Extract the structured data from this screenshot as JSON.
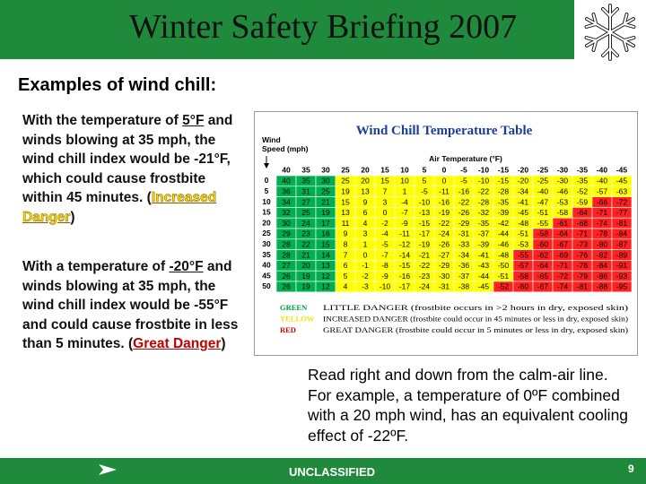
{
  "header": {
    "title": "Winter Safety Briefing 2007"
  },
  "heading": "Examples of wind chill:",
  "paragraphs": [
    [
      "With the temperature of ",
      "5°F",
      " and winds blowing at 35 mph, the wind chill index would be -21°F, which could cause frostbite within 45 minutes. (",
      "Increased Danger",
      ")"
    ],
    [
      "With a temperature of ",
      "-20°F",
      " and winds blowing  at 35 mph, the wind chill index would be -55°F and could cause frostbite in less than 5 minutes.  (",
      "Great Danger",
      ")"
    ]
  ],
  "table": {
    "title": "Wind Chill Temperature Table",
    "wind_label": [
      "Wind",
      "Speed (mph)"
    ],
    "temp_label": "Air Temperature (°F)",
    "palette": {
      "g": "#00b050",
      "y": "#ffff00",
      "r": "#ff2020"
    },
    "temperatures": [
      40,
      35,
      30,
      25,
      20,
      15,
      10,
      5,
      0,
      -5,
      -10,
      -15,
      -20,
      -25,
      -30,
      -35,
      -40,
      -45
    ],
    "rows": [
      {
        "wind": 0,
        "values": [
          40,
          35,
          30,
          25,
          20,
          15,
          10,
          5,
          0,
          -5,
          -10,
          -15,
          -20,
          -25,
          -30,
          -35,
          -40,
          -45
        ],
        "colors": "gggyyyyyyyyyyyyyyy"
      },
      {
        "wind": 5,
        "values": [
          36,
          31,
          25,
          19,
          13,
          7,
          1,
          -5,
          -11,
          -16,
          -22,
          -28,
          -34,
          -40,
          -46,
          -52,
          -57,
          -63
        ],
        "colors": "gggyyyyyyyyyyyyyyy"
      },
      {
        "wind": 10,
        "values": [
          34,
          27,
          21,
          15,
          9,
          3,
          -4,
          -10,
          -16,
          -22,
          -28,
          -35,
          -41,
          -47,
          -53,
          -59,
          -66,
          -72
        ],
        "colors": "gggyyyyyyyyyyyyyrr"
      },
      {
        "wind": 15,
        "values": [
          32,
          25,
          19,
          13,
          6,
          0,
          -7,
          -13,
          -19,
          -26,
          -32,
          -39,
          -45,
          -51,
          -58,
          -64,
          -71,
          -77
        ],
        "colors": "gggyyyyyyyyyyyyrrr"
      },
      {
        "wind": 20,
        "values": [
          30,
          24,
          17,
          11,
          4,
          -2,
          -9,
          -15,
          -22,
          -29,
          -35,
          -42,
          -48,
          -55,
          -61,
          -68,
          -74,
          -81
        ],
        "colors": "gggyyyyyyyyyyyrrrr"
      },
      {
        "wind": 25,
        "values": [
          29,
          23,
          16,
          9,
          3,
          -4,
          -11,
          -17,
          -24,
          -31,
          -37,
          -44,
          -51,
          -58,
          -64,
          -71,
          -78,
          -84
        ],
        "colors": "gggyyyyyyyyyyrrrrr"
      },
      {
        "wind": 30,
        "values": [
          28,
          22,
          15,
          8,
          1,
          -5,
          -12,
          -19,
          -26,
          -33,
          -39,
          -46,
          -53,
          -60,
          -67,
          -73,
          -80,
          -87
        ],
        "colors": "gggyyyyyyyyyyrrrrr"
      },
      {
        "wind": 35,
        "values": [
          28,
          21,
          14,
          7,
          0,
          -7,
          -14,
          -21,
          -27,
          -34,
          -41,
          -48,
          -55,
          -62,
          -69,
          -76,
          -82,
          -89
        ],
        "colors": "gggyyyyyyyyyrrrrrr"
      },
      {
        "wind": 40,
        "values": [
          27,
          20,
          13,
          6,
          -1,
          -8,
          -15,
          -22,
          -29,
          -36,
          -43,
          -50,
          -57,
          -64,
          -71,
          -78,
          -84,
          -91
        ],
        "colors": "gggyyyyyyyyyrrrrrr"
      },
      {
        "wind": 45,
        "values": [
          26,
          19,
          12,
          5,
          -2,
          -9,
          -16,
          -23,
          -30,
          -37,
          -44,
          -51,
          -58,
          -65,
          -72,
          -79,
          -86,
          -93
        ],
        "colors": "gggyyyyyyyyyrrrrrr"
      },
      {
        "wind": 50,
        "values": [
          26,
          19,
          12,
          4,
          -3,
          -10,
          -17,
          -24,
          -31,
          -38,
          -45,
          -52,
          -60,
          -67,
          -74,
          -81,
          -88,
          -95
        ],
        "colors": "gggyyyyyyyyrrrrrrr"
      }
    ],
    "legend": [
      {
        "name": "GREEN",
        "color": "#00a040",
        "text": "LITTLE DANGER (frostbite occurs in >2 hours in dry, exposed skin)"
      },
      {
        "name": "YELLOW",
        "color": "#e8e800",
        "text": "INCREASED DANGER (frostbite could occur in 45 minutes or less in dry, exposed skin)"
      },
      {
        "name": "RED",
        "color": "#e00000",
        "text": "GREAT DANGER (frostbite could occur in 5 minutes or less in dry, exposed skin)"
      }
    ]
  },
  "note": "Read right and down from the calm-air line. For example, a temperature of 0ºF combined with a 20 mph wind, has an equivalent cooling effect of -22ºF.",
  "footer": {
    "classification": "UNCLASSIFIED",
    "page": 9
  }
}
